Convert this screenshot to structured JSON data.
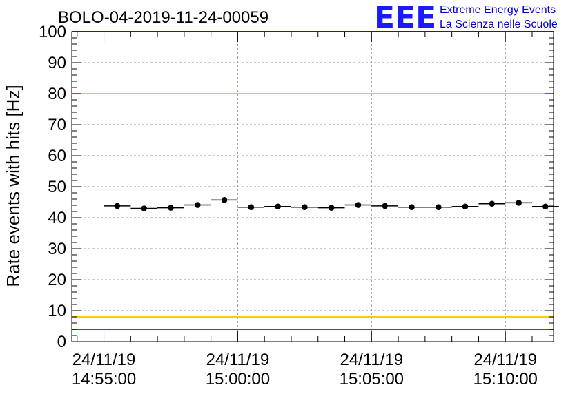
{
  "chart_data": {
    "type": "scatter",
    "title": "BOLO-04-2019-11-24-00059",
    "ylabel": "Rate events with hits [Hz]",
    "xlabel": "",
    "ylim": [
      0,
      100
    ],
    "yticks": [
      0,
      10,
      20,
      30,
      40,
      50,
      60,
      70,
      80,
      90,
      100
    ],
    "xlim_minutes": [
      -1.2,
      16.8
    ],
    "bin_width_minutes": 1,
    "xticks": [
      {
        "date": "24/11/19",
        "time": "14:55:00",
        "minutes": 0
      },
      {
        "date": "24/11/19",
        "time": "15:00:00",
        "minutes": 5
      },
      {
        "date": "24/11/19",
        "time": "15:05:00",
        "minutes": 10
      },
      {
        "date": "24/11/19",
        "time": "15:10:00",
        "minutes": 15
      }
    ],
    "series": [
      {
        "name": "rate",
        "x_minutes": [
          0.5,
          1.5,
          2.5,
          3.5,
          4.5,
          5.5,
          6.5,
          7.5,
          8.5,
          9.5,
          10.5,
          11.5,
          12.5,
          13.5,
          14.5,
          15.5,
          16.5
        ],
        "values": [
          43.8,
          43.0,
          43.2,
          44.1,
          45.7,
          43.4,
          43.6,
          43.4,
          43.2,
          44.1,
          43.8,
          43.4,
          43.4,
          43.6,
          44.5,
          44.8,
          43.6
        ]
      }
    ],
    "reference_lines": [
      {
        "name": "upper-limit-red",
        "value": 100,
        "color": "#ff0000"
      },
      {
        "name": "upper-warning-yellow",
        "value": 80,
        "color": "#ffcc00"
      },
      {
        "name": "lower-warning-yellow",
        "value": 8,
        "color": "#ffcc00"
      },
      {
        "name": "lower-limit-red",
        "value": 4,
        "color": "#ff0000"
      }
    ],
    "grid": true
  },
  "logo": {
    "letters": "EEE",
    "line1": "Extreme Energy Events",
    "line2": "La Scienza nelle Scuole",
    "color": "#1a1aff"
  }
}
